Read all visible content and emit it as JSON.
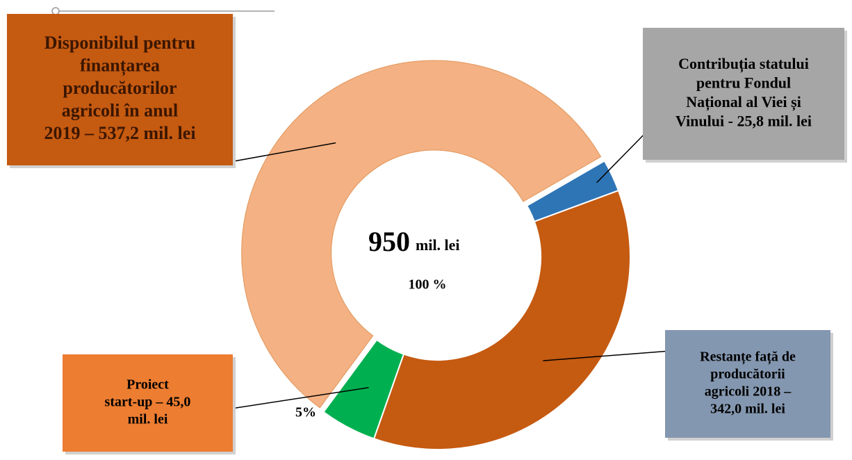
{
  "chart_data": {
    "type": "donut",
    "labels": [
      [
        "Contribuția statului",
        "pentru Fondul",
        "Național al Viei și",
        "Vinului - 25,8 mil. lei"
      ],
      [
        "Restanțe față de",
        "producătorii",
        "agricoli 2018 –",
        "342,0 mil. lei"
      ],
      [
        "Proiect",
        "start-up – 45,0",
        "mil. lei"
      ],
      [
        "Disponibilul pentru",
        "finanțarea",
        "producătorilor",
        "agricoli  în anul",
        "2019 – 537,2 mil. lei"
      ]
    ],
    "values": [
      25.8,
      342.0,
      45.0,
      537.2
    ],
    "colors": [
      "#2e75b6",
      "#c55a11",
      "#00b050",
      "#f4b183"
    ],
    "total": 950,
    "total_unit": "mil. lei",
    "total_percent": "100 %",
    "annotations": [
      "5%"
    ]
  }
}
